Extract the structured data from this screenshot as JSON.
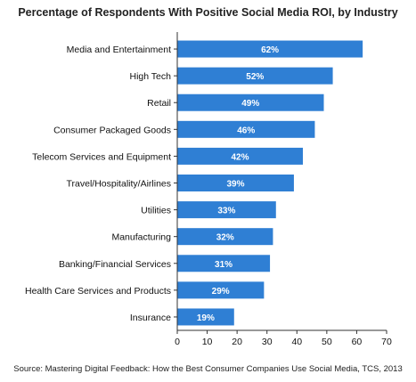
{
  "chart_data": {
    "type": "bar",
    "orientation": "horizontal",
    "title": "Percentage of Respondents With Positive Social Media ROI, by Industry",
    "categories": [
      "Media and Entertainment",
      "High Tech",
      "Retail",
      "Consumer Packaged Goods",
      "Telecom Services and Equipment",
      "Travel/Hospitality/Airlines",
      "Utilities",
      "Manufacturing",
      "Banking/Financial Services",
      "Health Care Services and Products",
      "Insurance"
    ],
    "values": [
      62,
      52,
      49,
      46,
      42,
      39,
      33,
      32,
      31,
      29,
      19
    ],
    "data_labels": [
      "62%",
      "52%",
      "49%",
      "46%",
      "42%",
      "39%",
      "33%",
      "32%",
      "31%",
      "29%",
      "19%"
    ],
    "x_ticks": [
      0,
      10,
      20,
      30,
      40,
      50,
      60,
      70
    ],
    "xlim": [
      0,
      70
    ],
    "xlabel": "",
    "ylabel": "",
    "grid": false,
    "bar_color": "#2f7fd4",
    "source": "Source: Mastering Digital Feedback: How the Best Consumer Companies Use Social Media, TCS, 2013"
  }
}
